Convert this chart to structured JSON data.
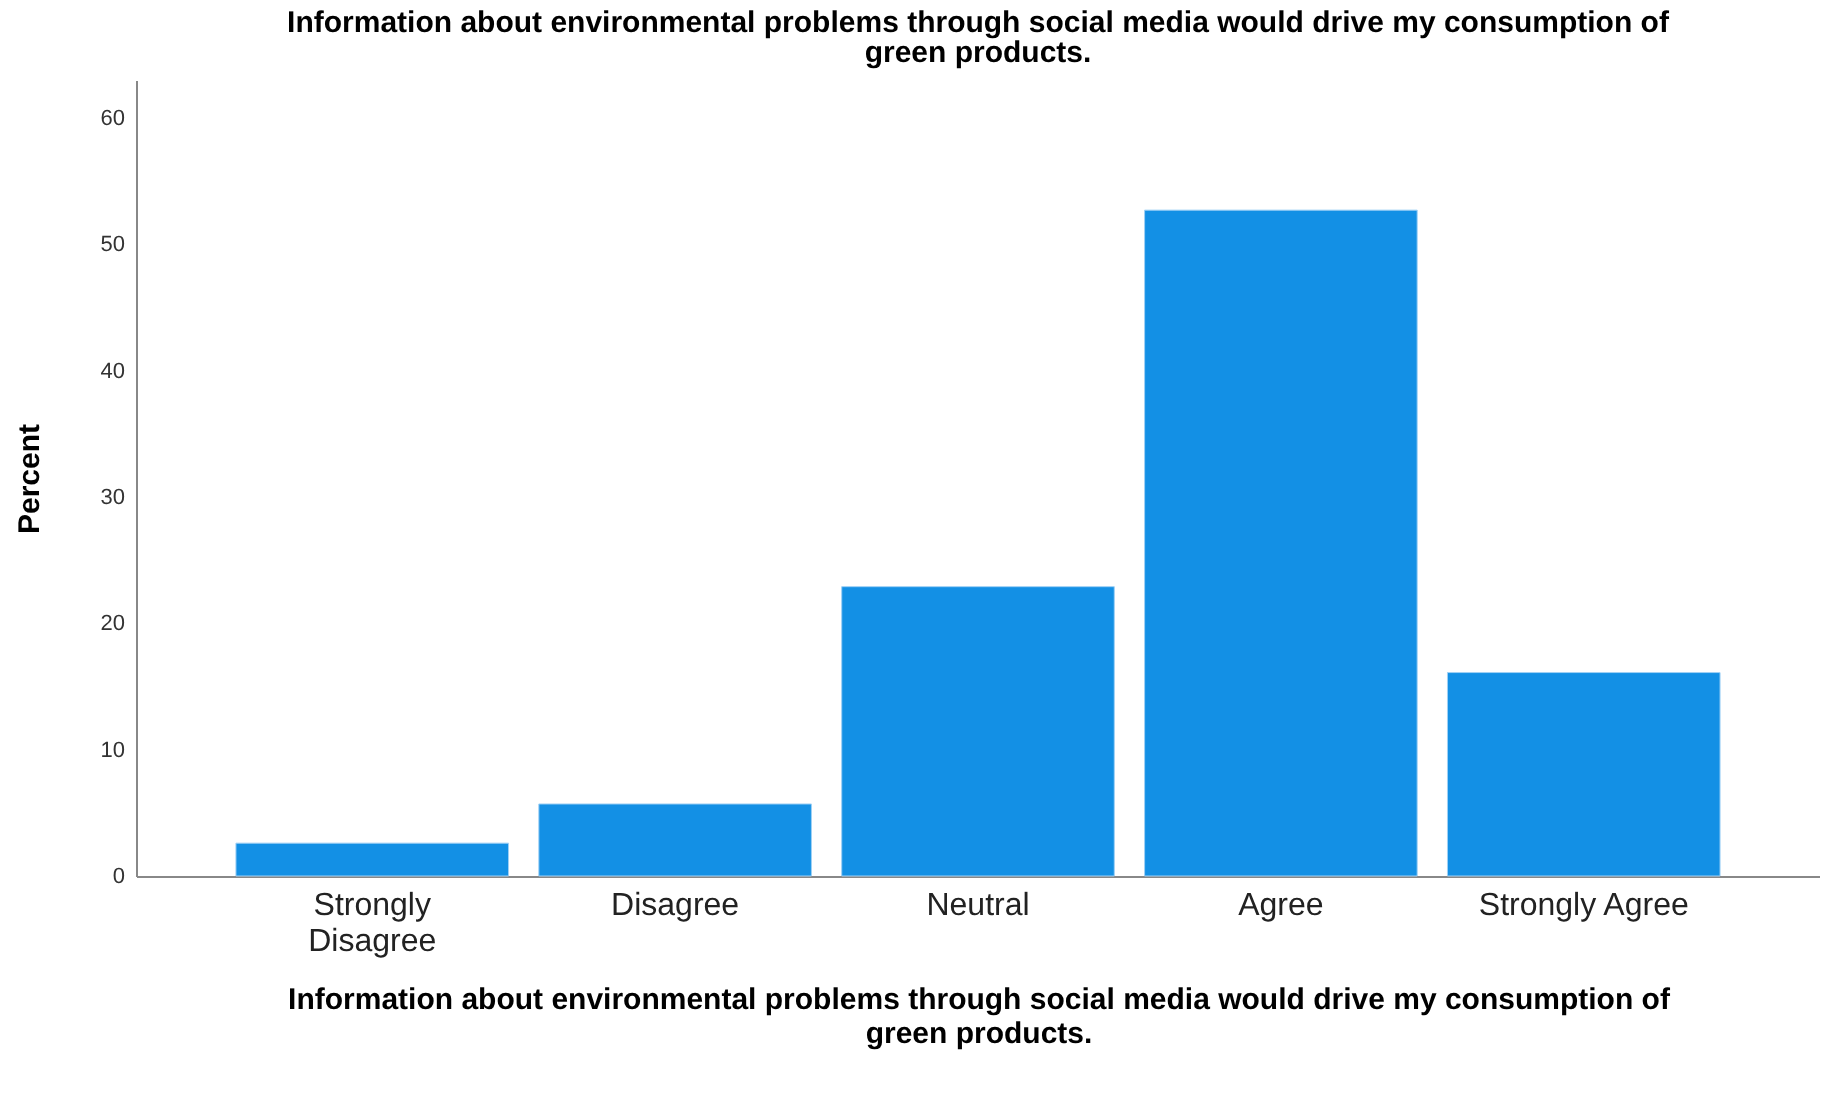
{
  "chart_data": {
    "type": "bar",
    "title": "Information about environmental problems through social media would drive my consumption of green products.",
    "xlabel": "Information about environmental problems through social media would drive my consumption of green products.",
    "ylabel": "Percent",
    "categories": [
      "Strongly Disagree",
      "Disagree",
      "Neutral",
      "Agree",
      "Strongly Agree"
    ],
    "values": [
      2.6,
      5.7,
      22.9,
      52.7,
      16.1
    ],
    "color": "#1390e5",
    "ylim": [
      0,
      63
    ],
    "yticks": [
      0,
      10,
      20,
      30,
      40,
      50,
      60
    ],
    "grid": false
  }
}
